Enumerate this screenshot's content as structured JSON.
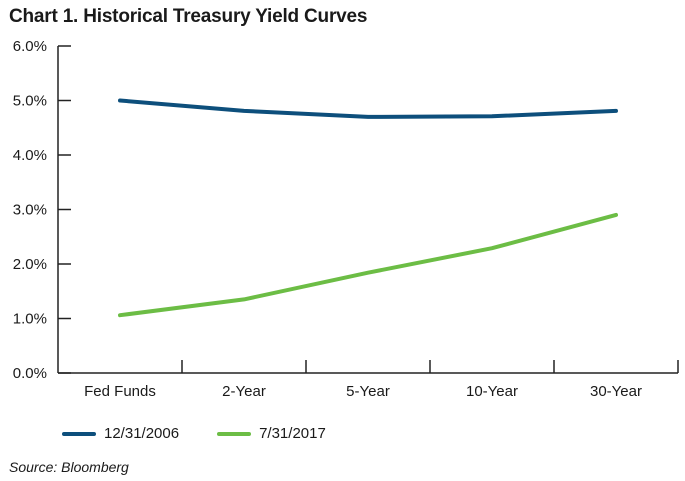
{
  "chart_data": {
    "type": "line",
    "title": "Chart 1. Historical Treasury Yield Curves",
    "categories": [
      "Fed Funds",
      "2-Year",
      "5-Year",
      "10-Year",
      "30-Year"
    ],
    "series": [
      {
        "name": "12/31/2006",
        "color": "#0d4f7c",
        "values": [
          5.0,
          4.81,
          4.7,
          4.71,
          4.81
        ]
      },
      {
        "name": "7/31/2017",
        "color": "#6cbd45",
        "values": [
          1.06,
          1.35,
          1.84,
          2.29,
          2.9
        ]
      }
    ],
    "y_ticks": [
      "0.0%",
      "1.0%",
      "2.0%",
      "3.0%",
      "4.0%",
      "5.0%",
      "6.0%"
    ],
    "ylim": [
      0,
      6
    ],
    "xlabel": "",
    "ylabel": "",
    "grid": false,
    "legend_position": "bottom-left",
    "source": "Source: Bloomberg"
  }
}
